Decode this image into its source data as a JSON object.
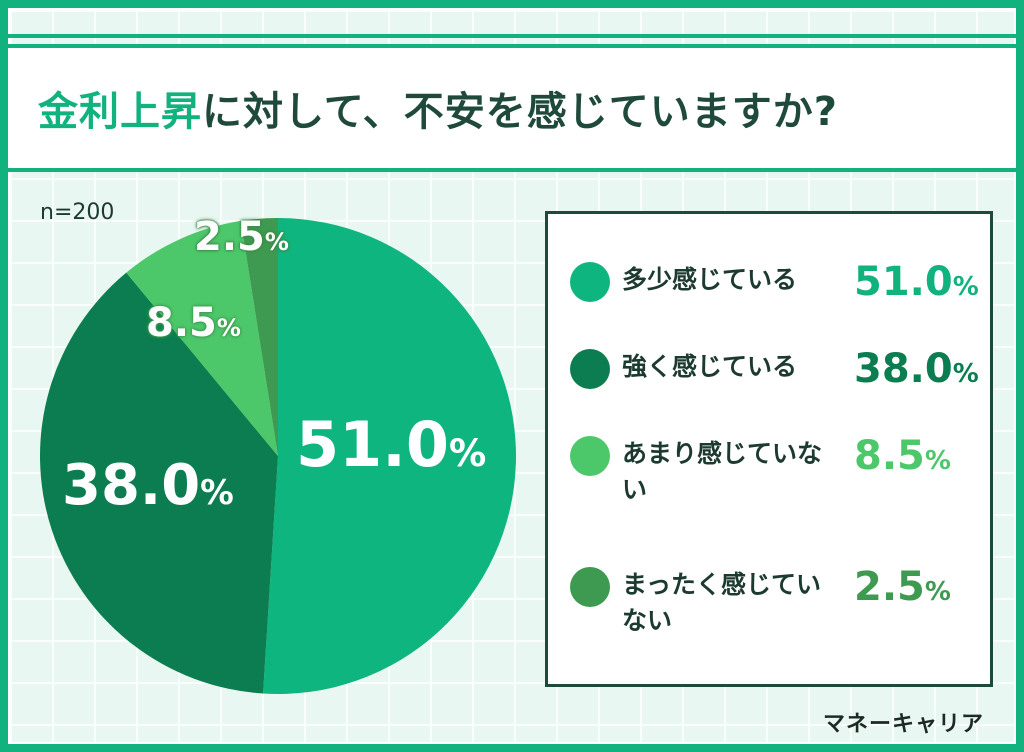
{
  "title": {
    "accent": "金利上昇",
    "rest": "に対して、不安を感じていますか?"
  },
  "sample_size": "n=200",
  "brand": "マネーキャリア",
  "colors": {
    "frame_green": "#12b27e",
    "slice_somewhat": "#0fb57f",
    "slice_strongly": "#0b7d50",
    "slice_not_much": "#4cc86a",
    "slice_not_at_all": "#3e9a50",
    "text_dark": "#1d3a31"
  },
  "slice_labels": {
    "somewhat": {
      "num": "51.0",
      "pct": "%"
    },
    "strongly": {
      "num": "38.0",
      "pct": "%"
    },
    "not_much": {
      "num": "8.5",
      "pct": "%"
    },
    "not_at_all": {
      "num": "2.5",
      "pct": "%"
    }
  },
  "legend": [
    {
      "label": "多少感じている",
      "num": "51.0",
      "pct": "%",
      "color": "#0fb57f",
      "value_color": "#12b27e"
    },
    {
      "label": "強く感じている",
      "num": "38.0",
      "pct": "%",
      "color": "#0b7d50",
      "value_color": "#0b7d50"
    },
    {
      "label": "あまり感じていない",
      "num": "8.5",
      "pct": "%",
      "color": "#4cc86a",
      "value_color": "#4cc86a"
    },
    {
      "label": "まったく感じていない",
      "num": "2.5",
      "pct": "%",
      "color": "#3e9a50",
      "value_color": "#3e9a50"
    }
  ],
  "chart_data": {
    "type": "pie",
    "title": "金利上昇に対して、不安を感じていますか?",
    "subtitle": "n=200",
    "categories": [
      "多少感じている",
      "強く感じている",
      "あまり感じていない",
      "まったく感じていない"
    ],
    "values": [
      51.0,
      38.0,
      8.5,
      2.5
    ],
    "unit": "%",
    "colors": [
      "#0fb57f",
      "#0b7d50",
      "#4cc86a",
      "#3e9a50"
    ],
    "start_angle": "12 o'clock, clockwise",
    "legend_position": "right",
    "source": "マネーキャリア"
  }
}
